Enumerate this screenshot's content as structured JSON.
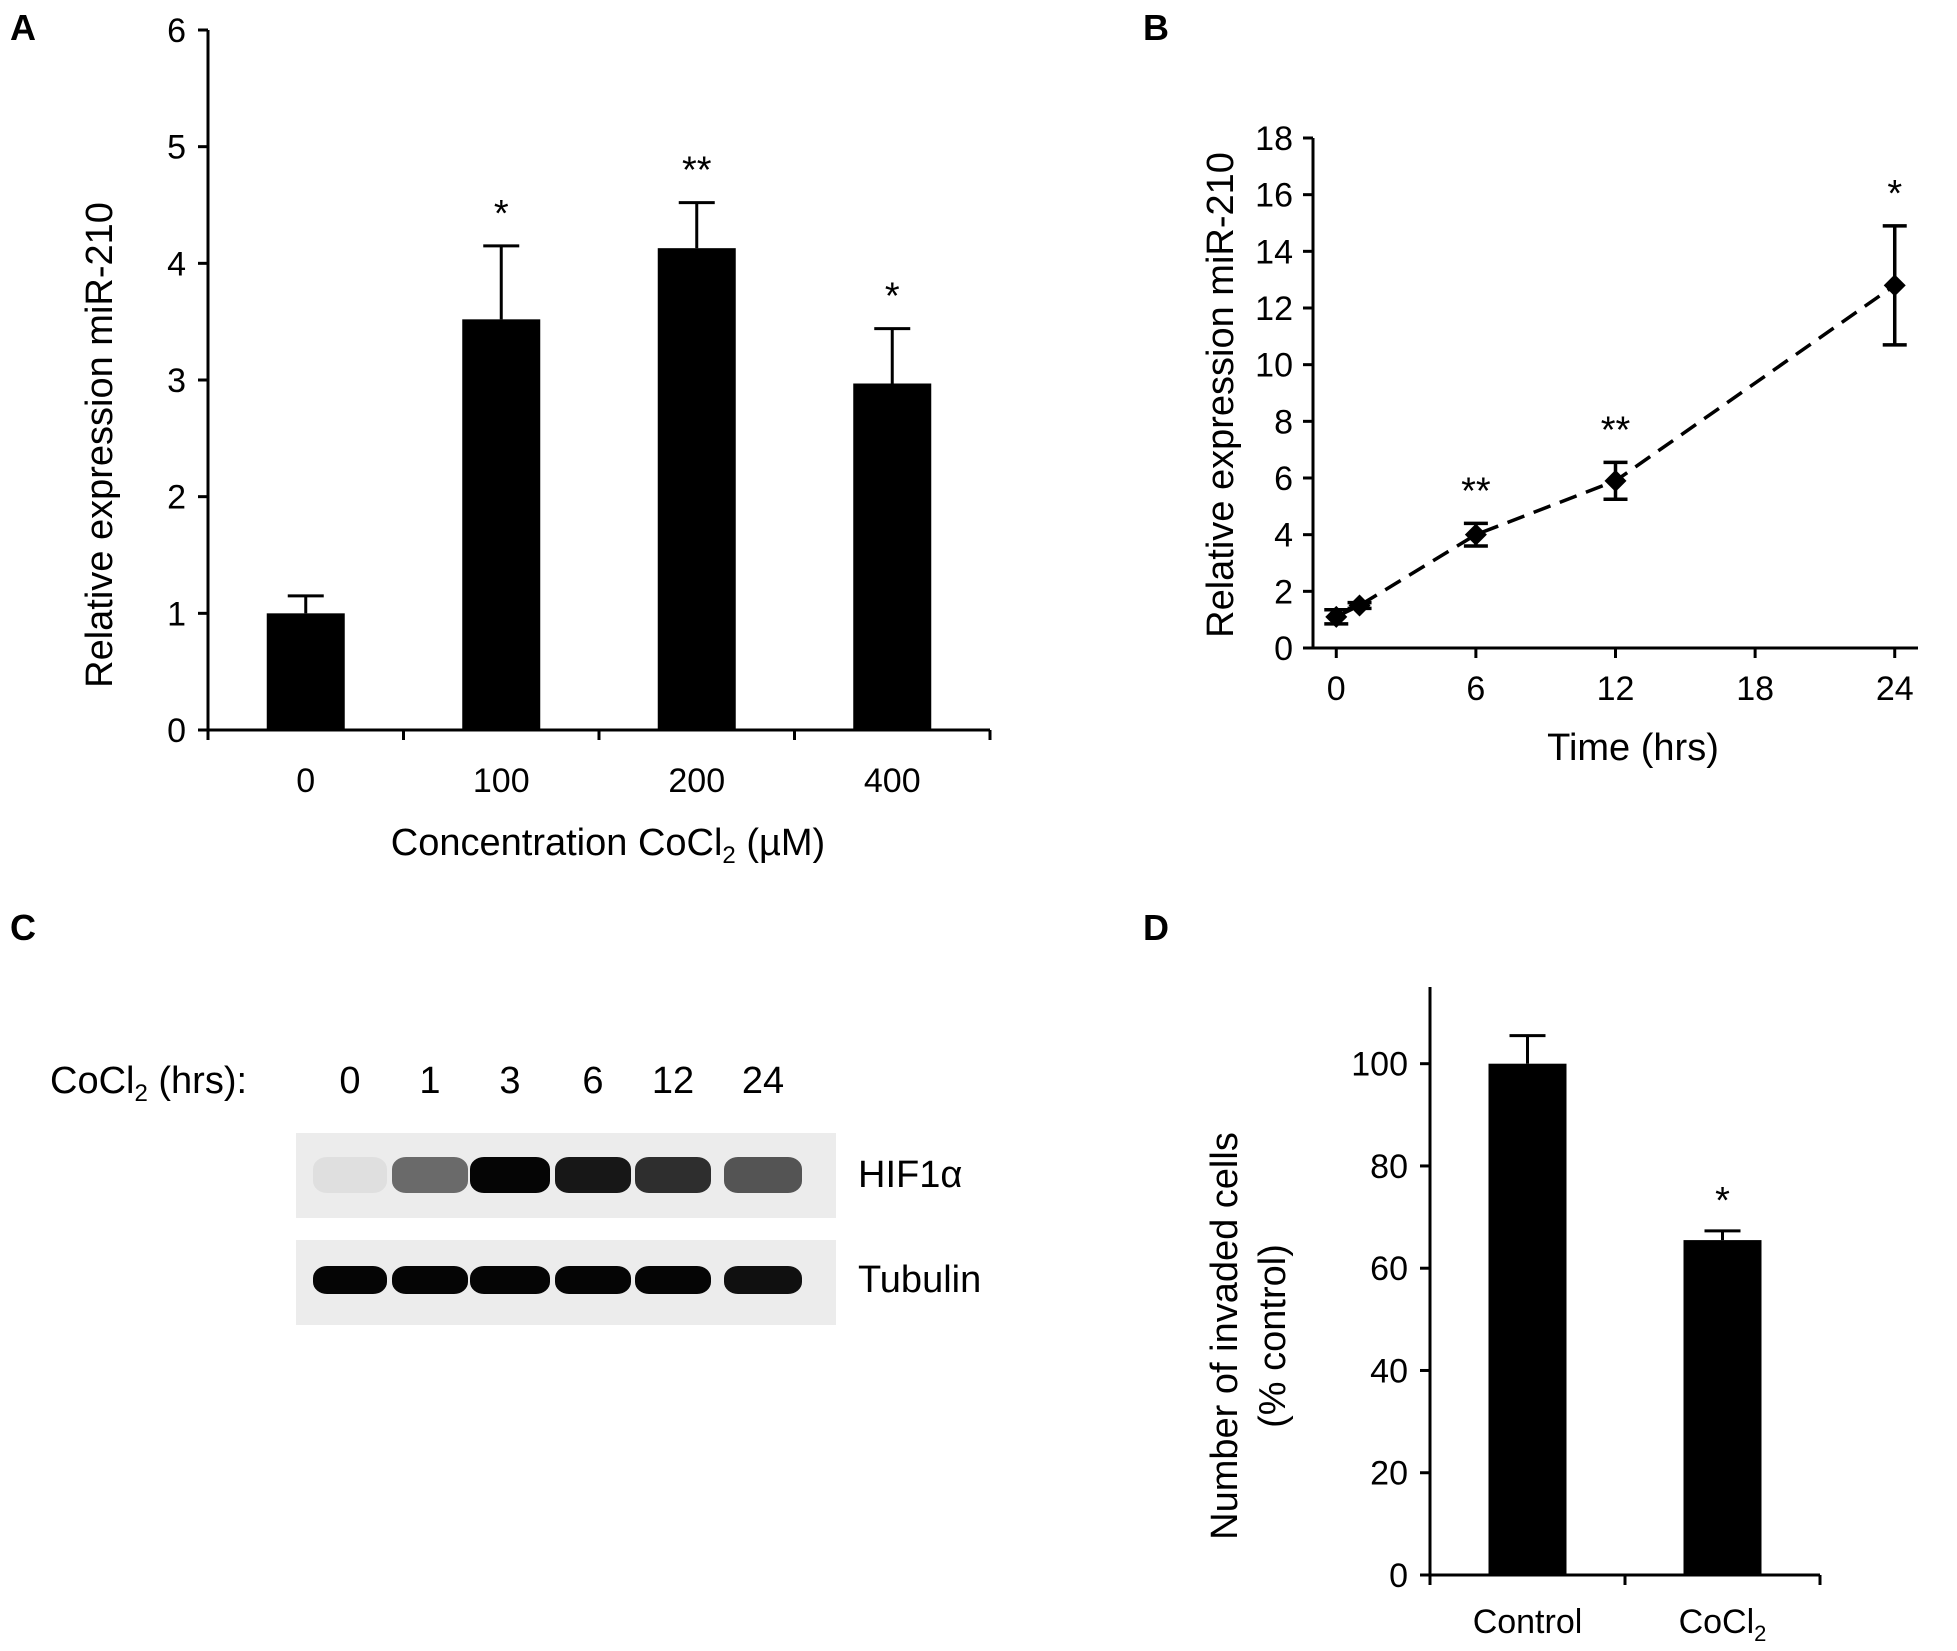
{
  "panel_labels": {
    "a": "A",
    "b": "B",
    "c": "C",
    "d": "D"
  },
  "chart_data": [
    {
      "panel": "A",
      "type": "bar",
      "categories": [
        "0",
        "100",
        "200",
        "400"
      ],
      "values": [
        1.0,
        3.52,
        4.13,
        2.97
      ],
      "errors": [
        0.15,
        0.63,
        0.39,
        0.47
      ],
      "significance": [
        "",
        "*",
        "**",
        "*"
      ],
      "ylim": [
        0,
        6
      ],
      "yticks": [
        0,
        1,
        2,
        3,
        4,
        5,
        6
      ],
      "ylabel": "Relative expression miR-210",
      "xlabel": {
        "main": "Concentration CoCl",
        "sub": "2",
        "tail": " (µM)"
      },
      "bar_color": "#000000"
    },
    {
      "panel": "B",
      "type": "line",
      "x": [
        0,
        1,
        6,
        12,
        24
      ],
      "values": [
        1.1,
        1.5,
        4.0,
        5.9,
        12.8
      ],
      "errors": [
        0.25,
        0.1,
        0.4,
        0.65,
        2.1
      ],
      "significance": [
        "",
        "",
        "**",
        "**",
        "*"
      ],
      "xlim": [
        -1,
        25
      ],
      "xticks": [
        0,
        6,
        12,
        18,
        24
      ],
      "ylim": [
        0,
        18
      ],
      "yticks": [
        0,
        2,
        4,
        6,
        8,
        10,
        12,
        14,
        16,
        18
      ],
      "ylabel": "Relative expression miR-210",
      "xlabel": "Time (hrs)",
      "line_style": "dashed",
      "marker": "diamond"
    },
    {
      "panel": "D",
      "type": "bar",
      "categories": [
        {
          "main": "Control",
          "sub": ""
        },
        {
          "main": "CoCl",
          "sub": "2"
        }
      ],
      "values": [
        100,
        65.5
      ],
      "errors": [
        5.5,
        1.8
      ],
      "significance": [
        "",
        "*"
      ],
      "ylim": [
        0,
        115
      ],
      "yticks": [
        0,
        20,
        40,
        60,
        80,
        100
      ],
      "ylabel_lines": [
        "Number of invaded cells",
        "(% control)"
      ],
      "bar_color": "#000000"
    }
  ],
  "blot": {
    "header": {
      "main": "CoCl",
      "sub": "2",
      "tail": " (hrs):"
    },
    "timepoints": [
      "0",
      "1",
      "3",
      "6",
      "12",
      "24"
    ],
    "rows": [
      {
        "label": "HIF1α",
        "intensity": [
          0.03,
          0.55,
          1.0,
          0.92,
          0.82,
          0.65
        ]
      },
      {
        "label": "Tubulin",
        "intensity": [
          1.0,
          1.0,
          1.0,
          1.0,
          1.0,
          0.95
        ]
      }
    ]
  }
}
